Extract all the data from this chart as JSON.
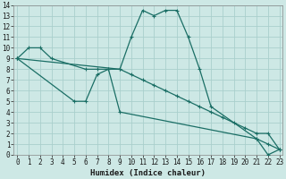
{
  "xlabel": "Humidex (Indice chaleur)",
  "bg_color": "#cde8e5",
  "grid_color": "#aacfcc",
  "line_color": "#1a6e65",
  "line1": {
    "x": [
      0,
      1,
      2,
      3,
      6,
      7,
      8,
      9,
      10,
      11,
      12,
      13,
      14,
      15,
      16,
      17,
      18,
      19,
      20,
      21,
      22,
      23
    ],
    "y": [
      9,
      10,
      10,
      9,
      8,
      8,
      8,
      8,
      7.5,
      7,
      6.5,
      6,
      5.5,
      5,
      4.5,
      4,
      3.5,
      3,
      2.5,
      2,
      2,
      0.5
    ]
  },
  "line2": {
    "x": [
      0,
      5,
      6,
      7,
      8,
      9,
      21,
      22,
      23
    ],
    "y": [
      9,
      5,
      5,
      7.5,
      8,
      4,
      1.5,
      1,
      0.5
    ]
  },
  "line3": {
    "x": [
      0,
      9,
      10,
      11,
      12,
      13,
      14,
      15,
      16,
      17,
      21,
      22,
      23
    ],
    "y": [
      9,
      8,
      11,
      13.5,
      13,
      13.5,
      13.5,
      11,
      8,
      4.5,
      1.5,
      0,
      0.5
    ]
  },
  "xlim": [
    -0.3,
    23.3
  ],
  "ylim": [
    0,
    14
  ],
  "xticks": [
    0,
    1,
    2,
    3,
    4,
    5,
    6,
    7,
    8,
    9,
    10,
    11,
    12,
    13,
    14,
    15,
    16,
    17,
    18,
    19,
    20,
    21,
    22,
    23
  ],
  "yticks": [
    0,
    1,
    2,
    3,
    4,
    5,
    6,
    7,
    8,
    9,
    10,
    11,
    12,
    13,
    14
  ],
  "tick_fontsize": 5.5,
  "xlabel_fontsize": 6.5,
  "line_width": 0.9,
  "marker_size": 3.5
}
